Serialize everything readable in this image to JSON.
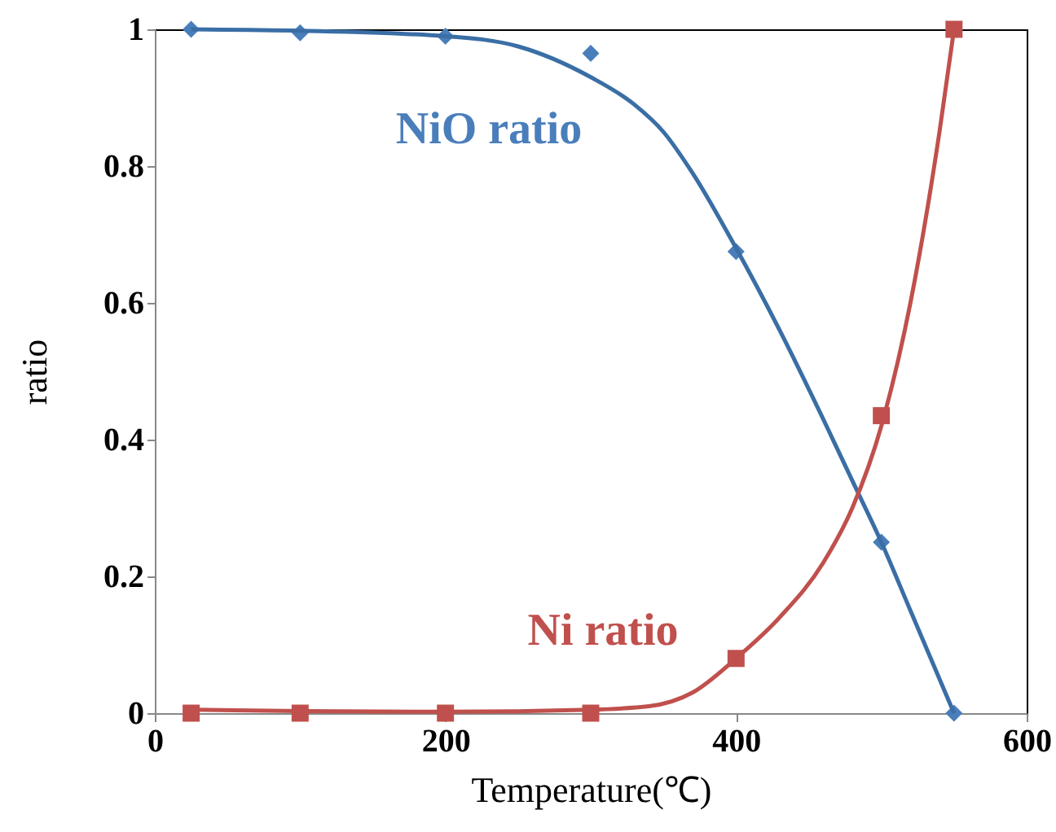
{
  "chart_data": {
    "type": "scatter",
    "xlabel": "Temperature(℃)",
    "ylabel": "ratio",
    "xlim": [
      0,
      600
    ],
    "xticks": [
      0,
      200,
      400,
      600
    ],
    "ylim": [
      0,
      1
    ],
    "yticks": [
      0,
      0.2,
      0.4,
      0.6,
      0.8,
      1
    ],
    "grid": false,
    "series": [
      {
        "name": "NiO ratio",
        "marker": "diamond",
        "color": "#4a7ebb",
        "x": [
          25,
          100,
          200,
          300,
          400,
          500,
          550
        ],
        "values": [
          1,
          0.995,
          0.99,
          0.965,
          0.675,
          0.25,
          0
        ]
      },
      {
        "name": "Ni ratio",
        "marker": "square",
        "color": "#c0504d",
        "x": [
          25,
          100,
          200,
          300,
          400,
          500,
          550
        ],
        "values": [
          0,
          0,
          0,
          0,
          0.08,
          0.435,
          1
        ]
      },
      {
        "type": "line",
        "line_style": "solid",
        "color": "#3a6ea5",
        "x": [
          25,
          100,
          200,
          250,
          300,
          330,
          350,
          370,
          400,
          430,
          460,
          480,
          500,
          520,
          540,
          550
        ],
        "values": [
          1,
          0.998,
          0.99,
          0.975,
          0.93,
          0.89,
          0.85,
          0.79,
          0.68,
          0.56,
          0.43,
          0.34,
          0.25,
          0.15,
          0.05,
          0
        ]
      },
      {
        "type": "line",
        "line_style": "solid",
        "color": "#c0504d",
        "x": [
          25,
          100,
          200,
          300,
          340,
          370,
          400,
          430,
          460,
          480,
          500,
          520,
          540,
          550
        ],
        "values": [
          0.005,
          0.003,
          0.002,
          0.005,
          0.01,
          0.03,
          0.08,
          0.14,
          0.22,
          0.3,
          0.42,
          0.6,
          0.85,
          1
        ]
      }
    ]
  }
}
